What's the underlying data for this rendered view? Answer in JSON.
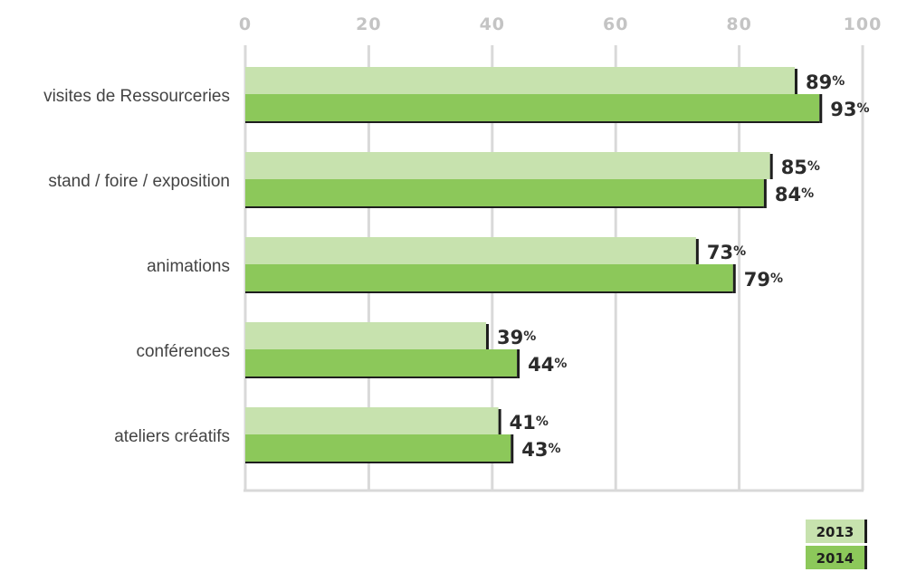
{
  "chart_data": {
    "type": "bar",
    "orientation": "horizontal",
    "categories": [
      "visites de Ressourceries",
      "stand / foire / exposition",
      "animations",
      "conférences",
      "ateliers créatifs"
    ],
    "series": [
      {
        "name": "2013",
        "values": [
          89,
          85,
          73,
          39,
          41
        ],
        "color": "#c7e2ae"
      },
      {
        "name": "2014",
        "values": [
          93,
          84,
          79,
          44,
          43
        ],
        "color": "#8cc85a"
      }
    ],
    "value_suffix": "%",
    "xlim": [
      0,
      100
    ],
    "x_ticks": [
      "0",
      "20",
      "40",
      "60",
      "80",
      "100"
    ],
    "axis_position": "top",
    "grid": true,
    "legend_position": "bottom-right",
    "colors": {
      "grid": "#d9d9d9",
      "tick_text": "#c4c4c4",
      "end_marker": "#1e1e1e"
    }
  }
}
